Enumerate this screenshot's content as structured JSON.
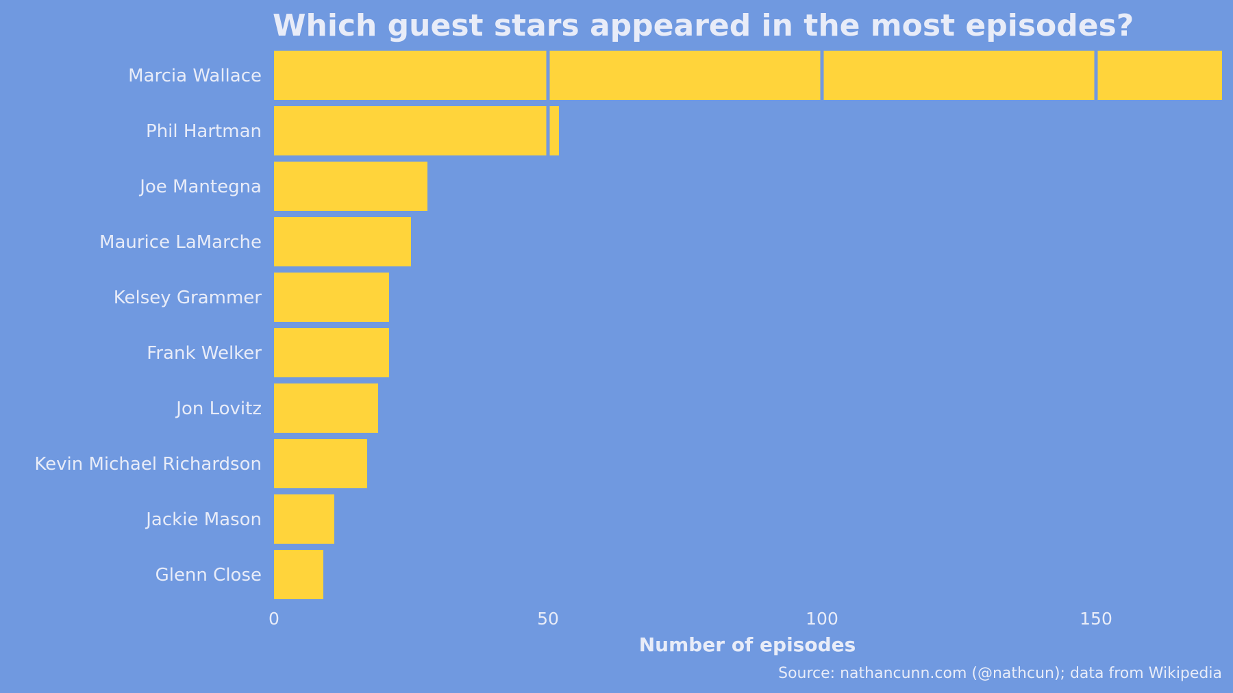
{
  "colors": {
    "background": "#7099e0",
    "bar": "#ffd43b",
    "text": "#e8ecf8"
  },
  "chart_data": {
    "type": "bar",
    "orientation": "horizontal",
    "title": "Which guest stars appeared in the most episodes?",
    "xlabel": "Number of episodes",
    "ylabel": "",
    "caption": "Source: nathancunn.com (@nathcun); data from Wikipedia",
    "categories": [
      "Marcia Wallace",
      "Phil Hartman",
      "Joe Mantegna",
      "Maurice LaMarche",
      "Kelsey Grammer",
      "Frank Welker",
      "Jon Lovitz",
      "Kevin Michael Richardson",
      "Jackie Mason",
      "Glenn Close"
    ],
    "values": [
      173,
      52,
      28,
      25,
      21,
      21,
      19,
      17,
      11,
      9
    ],
    "xlim": [
      0,
      173
    ],
    "xticks": [
      0,
      50,
      100,
      150
    ],
    "xtick_labels": [
      "0",
      "50",
      "100",
      "150"
    ],
    "segment_size": 50,
    "grid": false
  }
}
